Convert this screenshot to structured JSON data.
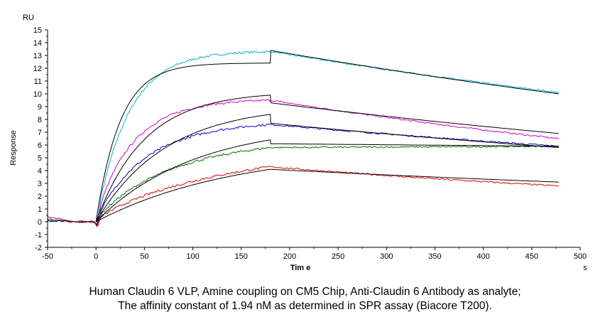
{
  "chart_data": {
    "type": "line",
    "ylabel_units": "RU",
    "ylabel": "Response",
    "xlabel": "Tim e",
    "xlabel_units": "s",
    "xlim": [
      -50,
      500
    ],
    "ylim": [
      -2,
      15
    ],
    "xticks": [
      -50,
      0,
      50,
      100,
      150,
      200,
      250,
      300,
      350,
      400,
      450,
      500
    ],
    "yticks": [
      -2,
      -1,
      0,
      1,
      2,
      3,
      4,
      5,
      6,
      7,
      8,
      9,
      10,
      11,
      12,
      13,
      14,
      15
    ],
    "injection_end": 180,
    "end_time": 478,
    "grid": false,
    "series": [
      {
        "color": "#00b4c8",
        "kind": "measured",
        "plateau": 13.3,
        "rate": 0.03,
        "shape": 1.0,
        "end": 10.1,
        "pre": 0.2
      },
      {
        "color": "#d000d0",
        "kind": "measured",
        "plateau": 9.5,
        "rate": 0.025,
        "shape": 0.9,
        "end": 6.5,
        "pre": 0.15
      },
      {
        "color": "#0000c0",
        "kind": "measured",
        "plateau": 7.6,
        "rate": 0.018,
        "shape": 0.9,
        "end": 5.9,
        "pre": 0.1
      },
      {
        "color": "#007000",
        "kind": "measured",
        "plateau": 5.8,
        "rate": 0.011,
        "shape": 0.85,
        "end": 5.9,
        "pre": 0.1
      },
      {
        "color": "#e00000",
        "kind": "measured",
        "plateau": 4.3,
        "rate": 0.006,
        "shape": 0.8,
        "end": 2.8,
        "pre": 0.4
      },
      {
        "color": "#000000",
        "kind": "fit",
        "plateau": 12.4,
        "peak": 13.4,
        "rate": 0.04,
        "end": 10.0
      },
      {
        "color": "#000000",
        "kind": "fit",
        "plateau": 9.9,
        "peak": 9.3,
        "rate": 0.02,
        "end": 6.9
      },
      {
        "color": "#000000",
        "kind": "fit",
        "plateau": 8.4,
        "peak": 7.7,
        "rate": 0.014,
        "end": 5.8
      },
      {
        "color": "#000000",
        "kind": "fit",
        "plateau": 6.4,
        "peak": 6.1,
        "rate": 0.01,
        "end": 5.9
      },
      {
        "color": "#000000",
        "kind": "fit",
        "plateau": 4.1,
        "peak": 4.1,
        "rate": 0.007,
        "end": 3.1
      }
    ]
  },
  "caption": {
    "line1": "Human Claudin 6 VLP, Amine coupling on CM5 Chip, Anti-Claudin 6 Antibody as analyte;",
    "line2": "The affinity constant of 1.94 nM as determined in SPR assay (Biacore T200)."
  }
}
